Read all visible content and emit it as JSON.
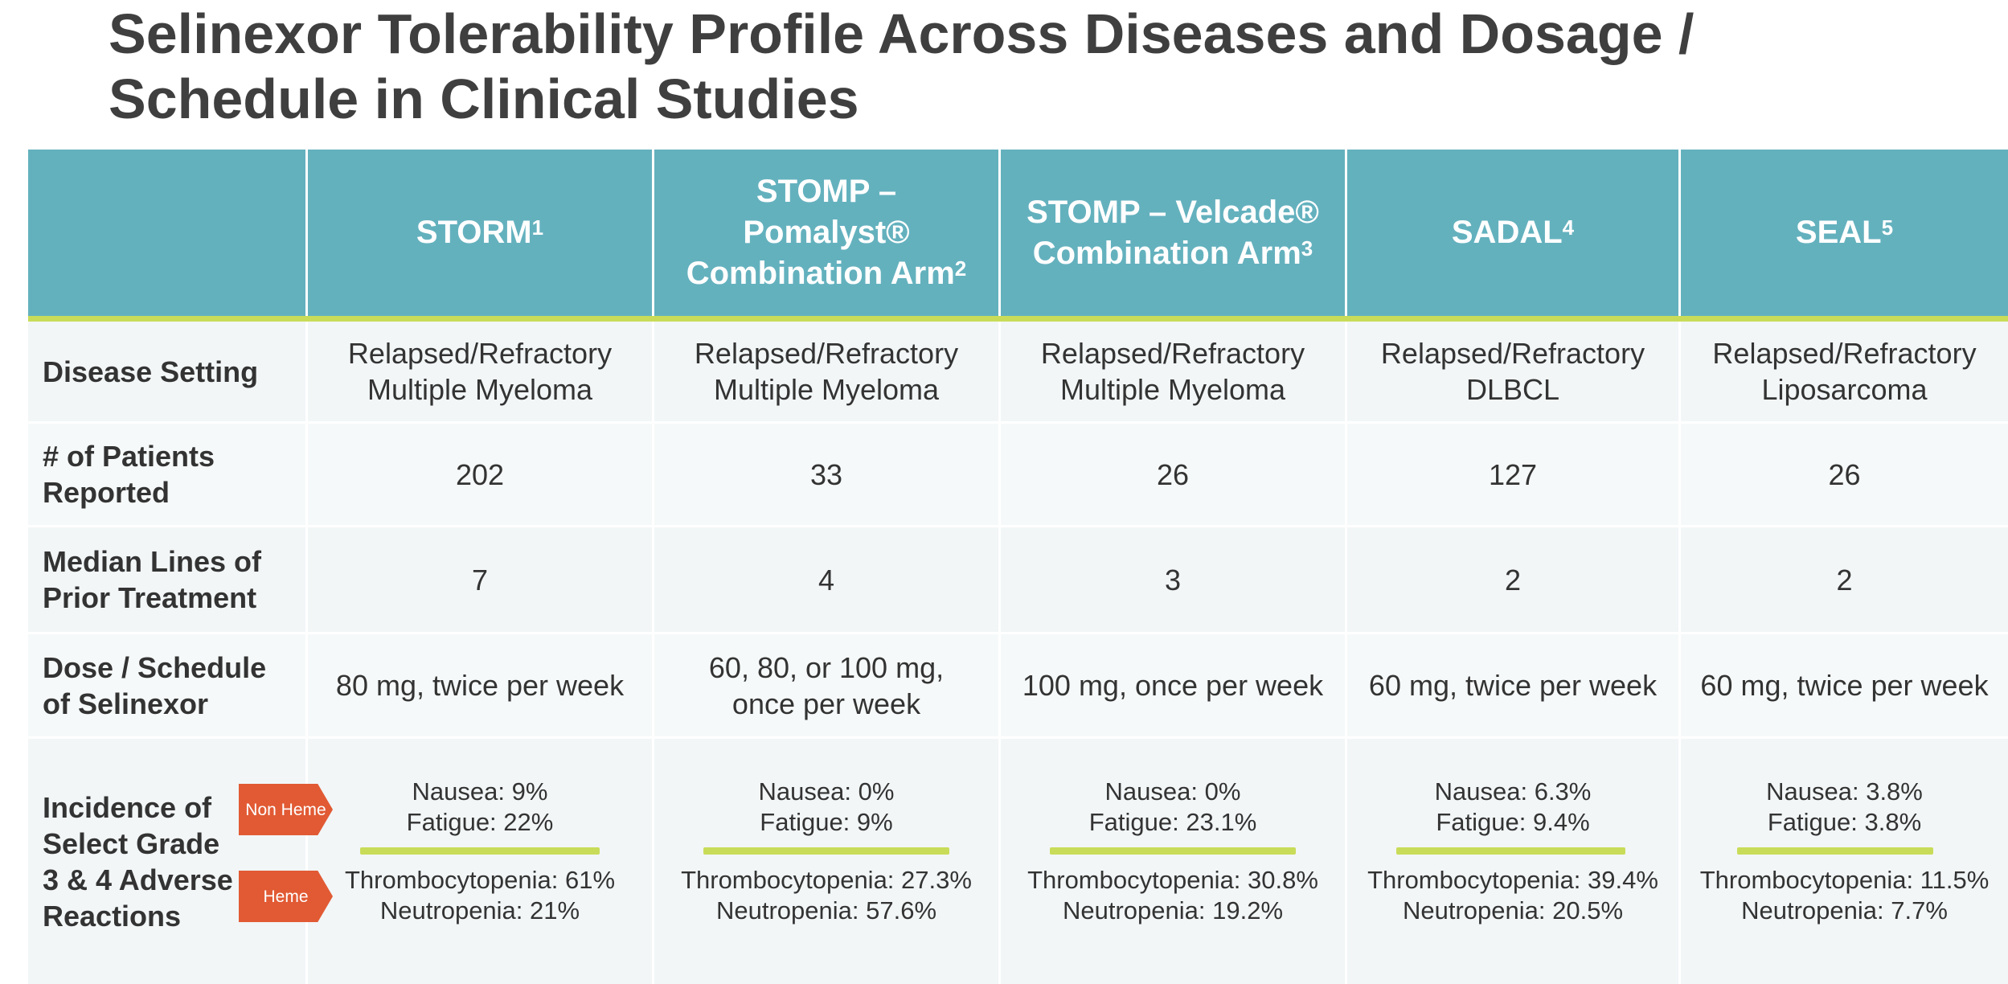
{
  "title": "Selinexor Tolerability Profile Across Diseases and Dosage / Schedule in Clinical Studies",
  "columns": [
    {
      "name": "STORM",
      "sup": "1"
    },
    {
      "name": "STOMP – Pomalyst® Combination Arm",
      "sup": "2"
    },
    {
      "name": "STOMP – Velcade® Combination Arm",
      "sup": "3"
    },
    {
      "name": "SADAL",
      "sup": "4"
    },
    {
      "name": "SEAL",
      "sup": "5"
    }
  ],
  "rows": {
    "disease": {
      "label": "Disease Setting",
      "values": [
        "Relapsed/Refractory Multiple Myeloma",
        "Relapsed/Refractory Multiple Myeloma",
        "Relapsed/Refractory Multiple Myeloma",
        "Relapsed/Refractory DLBCL",
        "Relapsed/Refractory Liposarcoma"
      ]
    },
    "patients": {
      "label": "# of Patients Reported",
      "values": [
        "202",
        "33",
        "26",
        "127",
        "26"
      ]
    },
    "lines": {
      "label": "Median Lines of Prior Treatment",
      "values": [
        "7",
        "4",
        "3",
        "2",
        "2"
      ]
    },
    "dose": {
      "label": "Dose / Schedule of Selinexor",
      "values": [
        "80 mg, twice per week",
        "60, 80, or 100 mg, once per week",
        "100 mg, once per week",
        "60 mg, twice per week",
        "60 mg, twice per week"
      ]
    },
    "adverse": {
      "label": "Incidence of Select Grade 3 & 4 Adverse Reactions",
      "tag_nonheme": "Non Heme",
      "tag_heme": "Heme",
      "values": [
        {
          "nausea": "Nausea: 9%",
          "fatigue": "Fatigue: 22%",
          "thrombo": "Thrombocytopenia: 61%",
          "neutro": "Neutropenia: 21%"
        },
        {
          "nausea": "Nausea: 0%",
          "fatigue": "Fatigue: 9%",
          "thrombo": "Thrombocytopenia: 27.3%",
          "neutro": "Neutropenia: 57.6%"
        },
        {
          "nausea": "Nausea: 0%",
          "fatigue": "Fatigue: 23.1%",
          "thrombo": "Thrombocytopenia: 30.8%",
          "neutro": "Neutropenia: 19.2%"
        },
        {
          "nausea": "Nausea: 6.3%",
          "fatigue": "Fatigue: 9.4%",
          "thrombo": "Thrombocytopenia: 39.4%",
          "neutro": "Neutropenia: 20.5%"
        },
        {
          "nausea": "Nausea: 3.8%",
          "fatigue": "Fatigue: 3.8%",
          "thrombo": "Thrombocytopenia: 11.5%",
          "neutro": "Neutropenia: 7.7%"
        }
      ]
    }
  },
  "colors": {
    "header": "#64b1be",
    "accent": "#c9dc59",
    "tag": "#e15a34",
    "text": "#333333"
  }
}
